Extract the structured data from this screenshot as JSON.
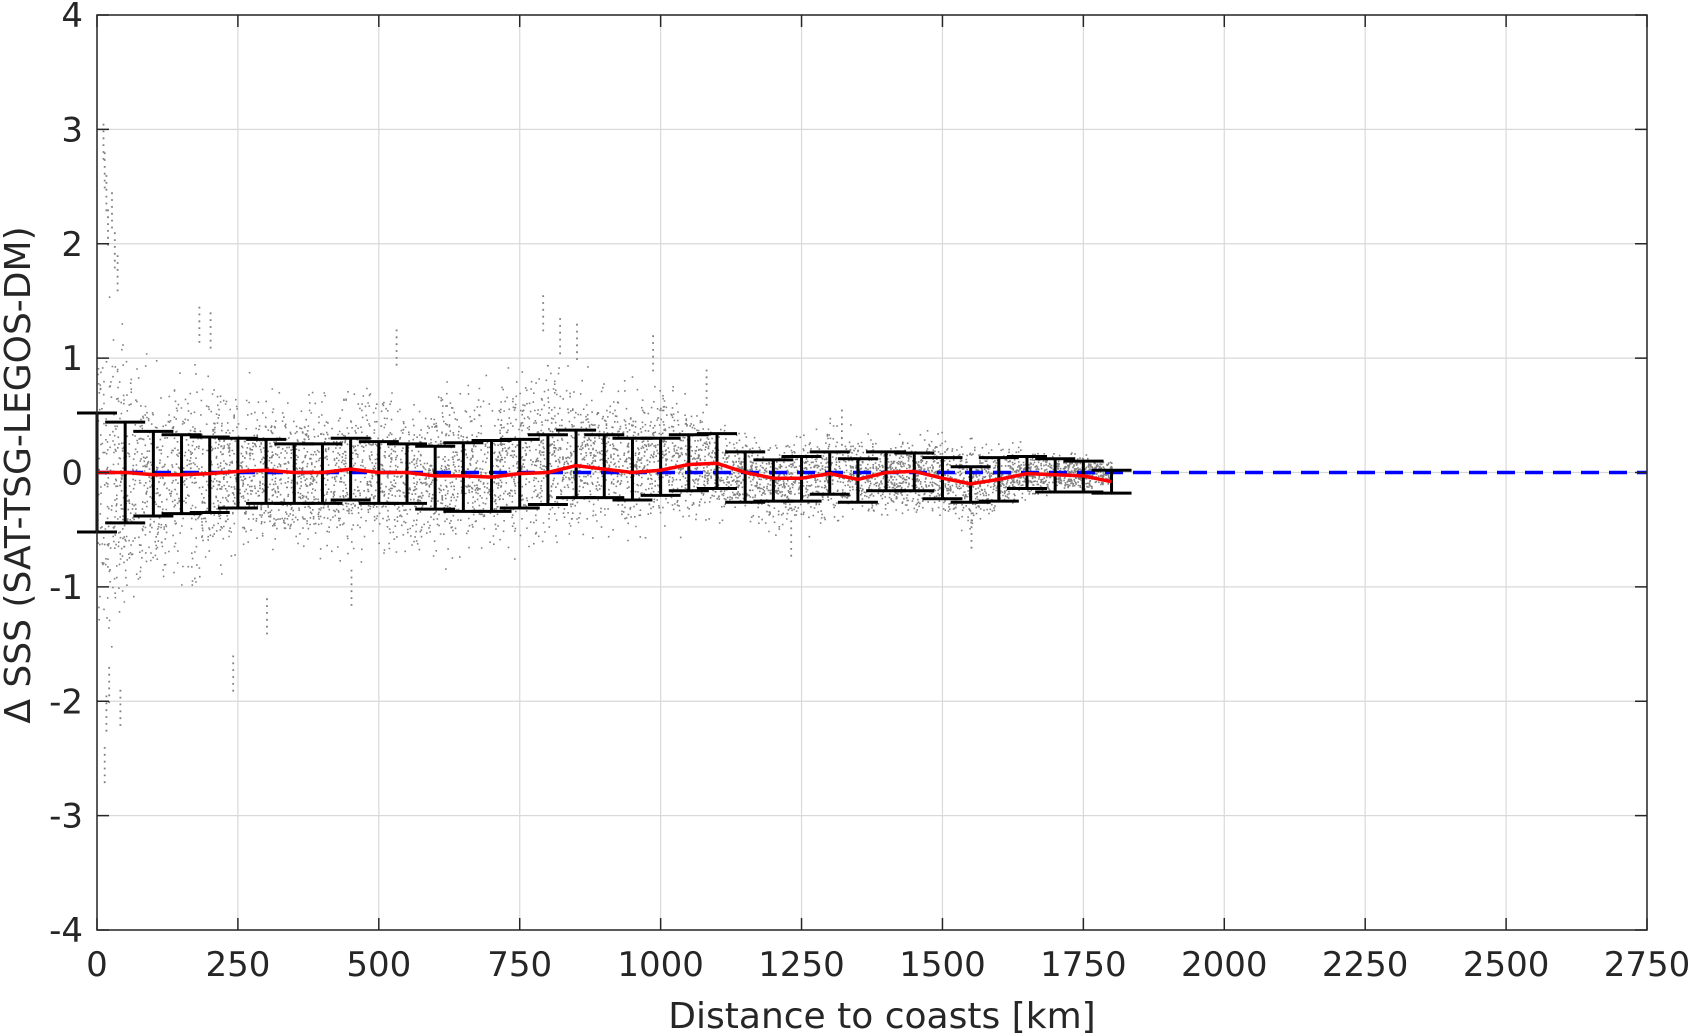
{
  "chart_data": {
    "type": "scatter",
    "title": "",
    "xlabel": "Distance to coasts [km]",
    "ylabel": "Δ SSS (SAT-TSG-LEGOS-DM)",
    "xlim": [
      0,
      2750
    ],
    "ylim": [
      -4,
      4
    ],
    "xticks": [
      0,
      250,
      500,
      750,
      1000,
      1250,
      1500,
      1750,
      2000,
      2250,
      2500,
      2750
    ],
    "yticks": [
      -4,
      -3,
      -2,
      -1,
      0,
      1,
      2,
      3,
      4
    ],
    "grid": true,
    "colors": {
      "scatter": "#808080",
      "errorbar": "#000000",
      "mean_line": "#ff0000",
      "zero_line": "#0000ff",
      "grid": "#d9d9d9",
      "axes": "#262626"
    },
    "scatter_envelope": {
      "x": [
        0,
        50,
        100,
        150,
        200,
        250,
        300,
        350,
        400,
        450,
        500,
        550,
        600,
        650,
        700,
        750,
        800,
        850,
        900,
        950,
        1000,
        1050,
        1100,
        1150,
        1200,
        1250,
        1300,
        1350,
        1400,
        1450,
        1500,
        1550,
        1600,
        1650,
        1700,
        1750,
        1800
      ],
      "upper": [
        1.9,
        1.6,
        1.1,
        1.2,
        1.1,
        0.95,
        0.85,
        0.9,
        0.95,
        0.9,
        0.95,
        0.85,
        0.9,
        0.95,
        0.95,
        1.1,
        1.2,
        1.0,
        0.9,
        0.95,
        0.95,
        0.8,
        0.55,
        0.45,
        0.45,
        0.5,
        0.55,
        0.45,
        0.45,
        0.45,
        0.45,
        0.4,
        0.35,
        0.3,
        0.25,
        0.2,
        0.15
      ],
      "lower": [
        -1.9,
        -1.7,
        -1.4,
        -1.3,
        -1.2,
        -0.95,
        -0.9,
        -0.95,
        -0.95,
        -0.95,
        -0.95,
        -0.95,
        -0.9,
        -0.9,
        -0.85,
        -0.85,
        -0.8,
        -0.75,
        -0.7,
        -0.7,
        -0.65,
        -0.6,
        -0.5,
        -0.5,
        -0.6,
        -0.6,
        -0.55,
        -0.5,
        -0.45,
        -0.45,
        -0.5,
        -0.6,
        -0.4,
        -0.3,
        -0.25,
        -0.2,
        -0.15
      ]
    },
    "scatter_outliers": [
      {
        "x": 10,
        "y": 3.05
      },
      {
        "x": 12,
        "y": 2.8
      },
      {
        "x": 15,
        "y": 2.6
      },
      {
        "x": 18,
        "y": 2.3
      },
      {
        "x": 25,
        "y": 2.45
      },
      {
        "x": 30,
        "y": 2.1
      },
      {
        "x": 35,
        "y": 1.9
      },
      {
        "x": 12,
        "y": -2.7
      },
      {
        "x": 15,
        "y": -2.25
      },
      {
        "x": 40,
        "y": -2.2
      },
      {
        "x": 20,
        "y": -2.0
      },
      {
        "x": 240,
        "y": -1.9
      },
      {
        "x": 300,
        "y": -1.4
      },
      {
        "x": 180,
        "y": 1.45
      },
      {
        "x": 200,
        "y": 1.4
      },
      {
        "x": 450,
        "y": -1.15
      },
      {
        "x": 530,
        "y": 1.25
      },
      {
        "x": 790,
        "y": 1.55
      },
      {
        "x": 820,
        "y": 1.35
      },
      {
        "x": 1080,
        "y": 0.9
      },
      {
        "x": 985,
        "y": 1.2
      },
      {
        "x": 1230,
        "y": -0.72
      },
      {
        "x": 1320,
        "y": 0.55
      },
      {
        "x": 1550,
        "y": -0.65
      },
      {
        "x": 850,
        "y": 1.3
      }
    ],
    "series": [
      {
        "kind": "errorbar",
        "x": [
          0,
          50,
          100,
          150,
          200,
          250,
          300,
          350,
          400,
          450,
          500,
          550,
          600,
          650,
          700,
          750,
          800,
          850,
          900,
          950,
          1000,
          1050,
          1100,
          1150,
          1200,
          1250,
          1300,
          1350,
          1400,
          1450,
          1500,
          1550,
          1600,
          1650,
          1700,
          1750,
          1800
        ],
        "mean": [
          0.0,
          0.0,
          -0.02,
          -0.02,
          -0.01,
          0.01,
          0.02,
          0.0,
          0.0,
          0.03,
          0.0,
          0.0,
          -0.03,
          -0.03,
          -0.04,
          -0.01,
          0.0,
          0.06,
          0.03,
          0.0,
          0.02,
          0.07,
          0.08,
          0.0,
          -0.05,
          -0.05,
          -0.01,
          -0.06,
          0.0,
          0.01,
          -0.05,
          -0.1,
          -0.06,
          -0.01,
          -0.02,
          -0.03,
          -0.08
        ],
        "lower": [
          -0.52,
          -0.44,
          -0.38,
          -0.36,
          -0.35,
          -0.31,
          -0.27,
          -0.27,
          -0.27,
          -0.24,
          -0.27,
          -0.27,
          -0.32,
          -0.34,
          -0.34,
          -0.31,
          -0.28,
          -0.22,
          -0.22,
          -0.24,
          -0.2,
          -0.16,
          -0.14,
          -0.26,
          -0.25,
          -0.25,
          -0.19,
          -0.26,
          -0.16,
          -0.16,
          -0.23,
          -0.26,
          -0.25,
          -0.14,
          -0.17,
          -0.17,
          -0.18
        ],
        "upper": [
          0.52,
          0.44,
          0.36,
          0.33,
          0.31,
          0.3,
          0.29,
          0.25,
          0.25,
          0.3,
          0.27,
          0.25,
          0.23,
          0.26,
          0.28,
          0.29,
          0.33,
          0.37,
          0.33,
          0.3,
          0.3,
          0.33,
          0.34,
          0.18,
          0.11,
          0.14,
          0.18,
          0.12,
          0.18,
          0.17,
          0.13,
          0.05,
          0.13,
          0.14,
          0.12,
          0.1,
          0.02
        ]
      },
      {
        "kind": "line",
        "x": [
          0,
          50,
          100,
          150,
          200,
          250,
          300,
          350,
          400,
          450,
          500,
          550,
          600,
          650,
          700,
          750,
          800,
          850,
          900,
          950,
          1000,
          1050,
          1100,
          1150,
          1200,
          1250,
          1300,
          1350,
          1400,
          1450,
          1500,
          1550,
          1600,
          1650,
          1700,
          1750,
          1800
        ],
        "y": [
          0.0,
          0.0,
          -0.02,
          -0.02,
          -0.01,
          0.01,
          0.02,
          0.0,
          0.0,
          0.03,
          0.0,
          0.0,
          -0.03,
          -0.03,
          -0.04,
          -0.01,
          0.0,
          0.06,
          0.03,
          0.0,
          0.02,
          0.07,
          0.08,
          0.0,
          -0.05,
          -0.05,
          -0.01,
          -0.06,
          0.0,
          0.01,
          -0.05,
          -0.1,
          -0.06,
          -0.01,
          -0.02,
          -0.03,
          -0.08
        ]
      },
      {
        "kind": "reference-line",
        "x": [
          0,
          2750
        ],
        "y": [
          0,
          0
        ]
      }
    ]
  }
}
